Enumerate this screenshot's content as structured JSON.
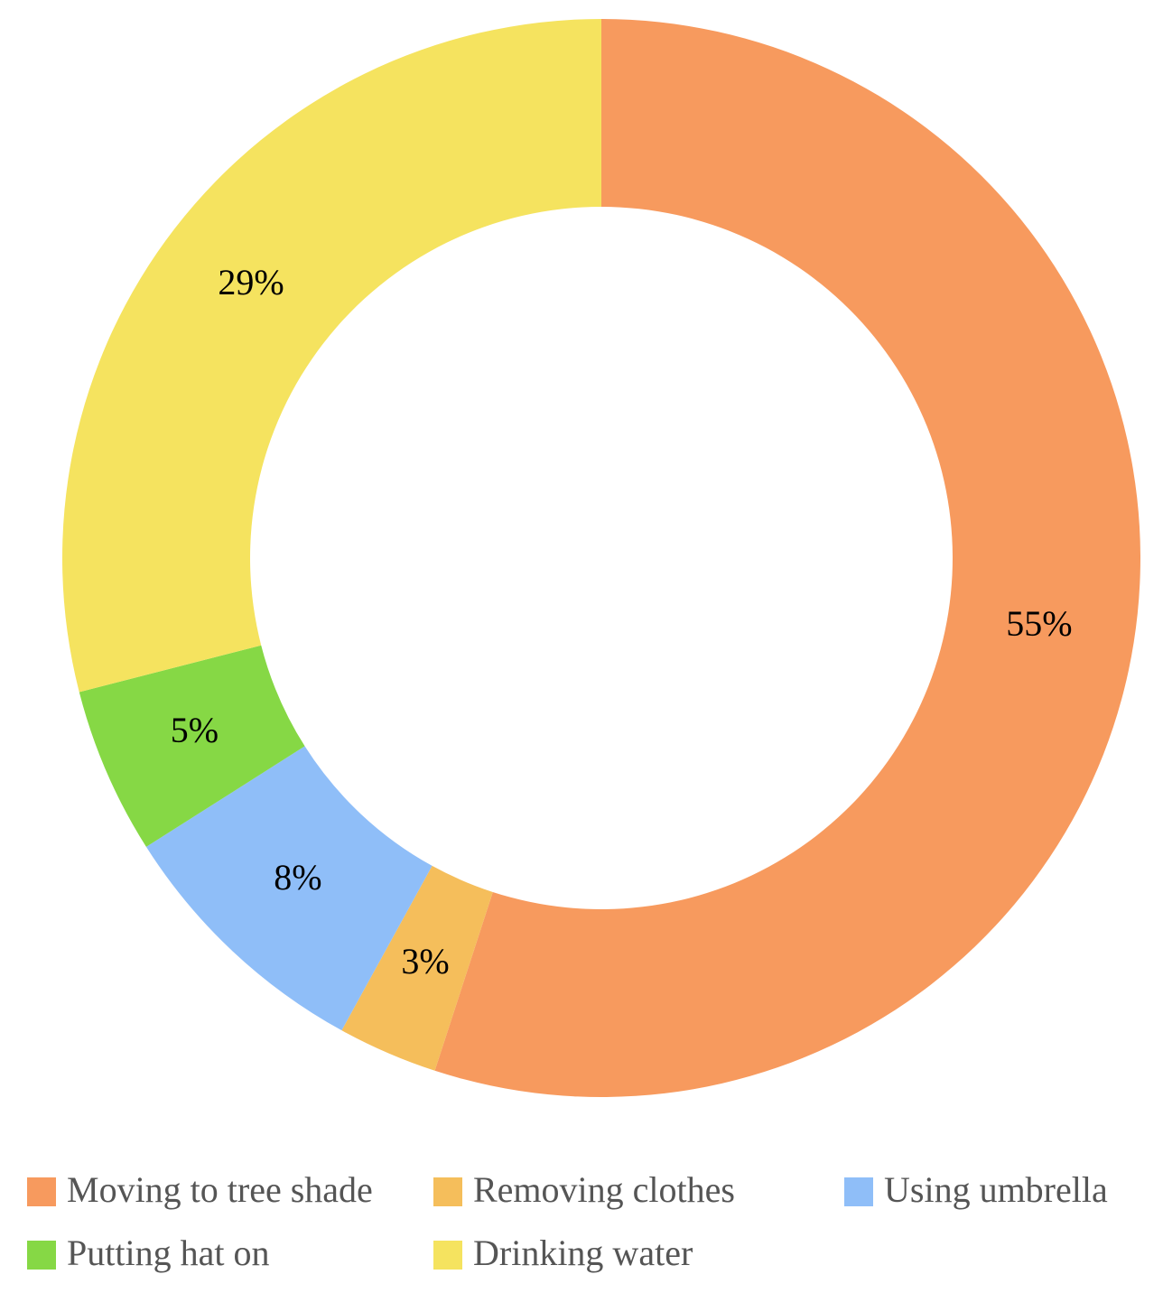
{
  "chart_data": {
    "type": "donut",
    "categories": [
      "Moving to tree shade",
      "Removing clothes",
      "Using umbrella",
      "Putting hat on",
      "Drinking water"
    ],
    "values": [
      55,
      3,
      8,
      5,
      29
    ],
    "value_labels": [
      "55%",
      "3%",
      "8%",
      "5%",
      "29%"
    ],
    "colors": [
      "#f79a5e",
      "#f5be5b",
      "#8fbef8",
      "#86d845",
      "#f5e35f"
    ]
  }
}
